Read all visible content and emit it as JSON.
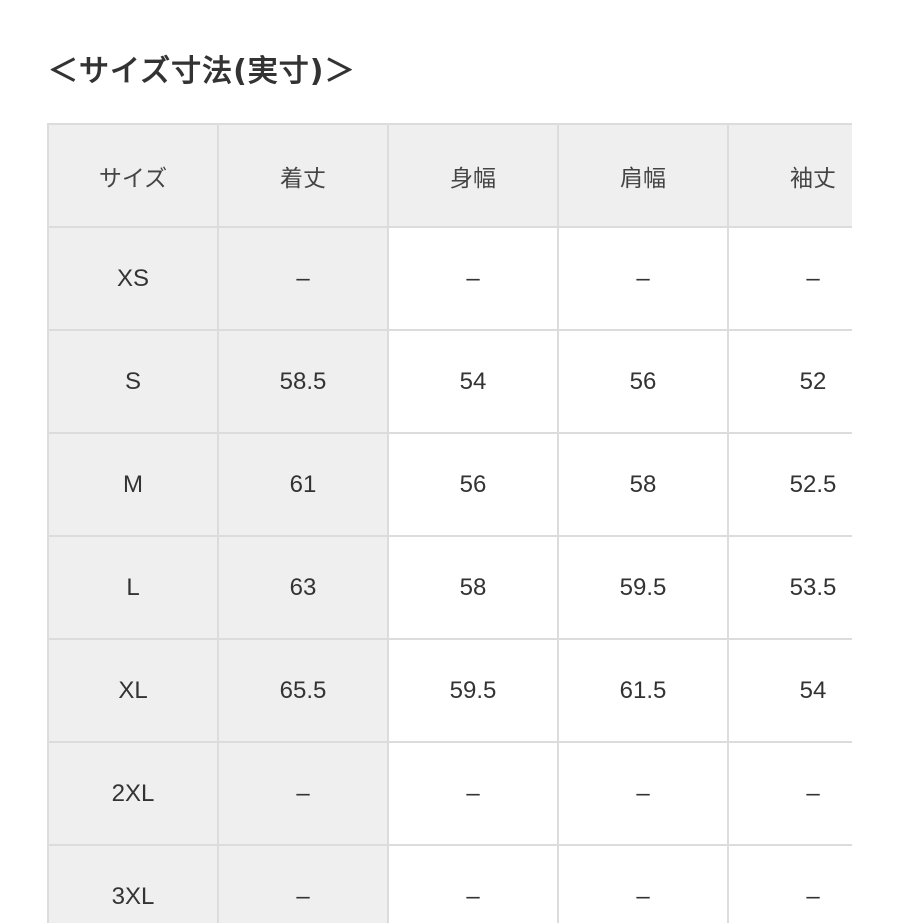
{
  "title": "＜サイズ寸法(実寸)＞",
  "table": {
    "headers": [
      "サイズ",
      "着丈",
      "身幅",
      "肩幅",
      "袖丈"
    ],
    "rows": [
      [
        "XS",
        "–",
        "–",
        "–",
        "–"
      ],
      [
        "S",
        "58.5",
        "54",
        "56",
        "52"
      ],
      [
        "M",
        "61",
        "56",
        "58",
        "52.5"
      ],
      [
        "L",
        "63",
        "58",
        "59.5",
        "53.5"
      ],
      [
        "XL",
        "65.5",
        "59.5",
        "61.5",
        "54"
      ],
      [
        "2XL",
        "–",
        "–",
        "–",
        "–"
      ],
      [
        "3XL",
        "–",
        "–",
        "–",
        "–"
      ]
    ]
  }
}
